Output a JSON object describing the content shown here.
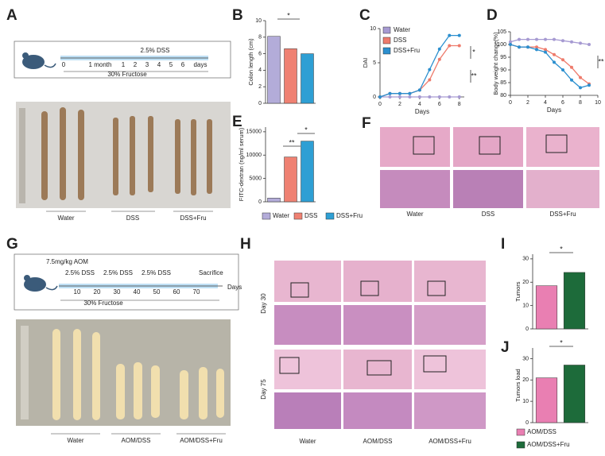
{
  "panels": {
    "A": {
      "label": "A",
      "dss": "2.5% DSS",
      "ticks": [
        "0",
        "1 month",
        "1",
        "2",
        "3",
        "4",
        "5",
        "6"
      ],
      "unit": "days",
      "fructose": "30% Fructose",
      "groups": [
        "Water",
        "DSS",
        "DSS+Fru"
      ]
    },
    "F": {
      "label": "F",
      "groups": [
        "Water",
        "DSS",
        "DSS+Fru"
      ]
    },
    "G": {
      "label": "G",
      "aom": "7.5mg/kg AOM",
      "dss": [
        "2.5% DSS",
        "2.5% DSS",
        "2.5% DSS"
      ],
      "sacrifice": "Sacrifice",
      "ticks": [
        10,
        20,
        30,
        40,
        50,
        60,
        70
      ],
      "unit": "Days",
      "fructose": "30% Fructose",
      "groups": [
        "Water",
        "AOM/DSS",
        "AOM/DSS+Fru"
      ]
    },
    "H": {
      "label": "H",
      "rows": [
        "Day 30",
        "Day 75"
      ],
      "groups": [
        "Water",
        "AOM/DSS",
        "AOM/DSS+Fru"
      ]
    }
  },
  "chart_data": [
    {
      "panel": "B",
      "type": "bar",
      "ylabel": "Colon length (cm)",
      "values": [
        8.1,
        6.6,
        6.0
      ],
      "colors": [
        "#b3acd9",
        "#ef8172",
        "#2e9fd4"
      ],
      "ylim": [
        0,
        10
      ],
      "yticks": [
        0,
        2,
        4,
        6,
        8,
        10
      ],
      "annotations": [
        "*"
      ]
    },
    {
      "panel": "C",
      "type": "line",
      "ylabel": "DAI",
      "xlabel": "Days",
      "x": [
        0,
        1,
        2,
        3,
        4,
        5,
        6,
        7,
        8
      ],
      "xlim": [
        0,
        8.5
      ],
      "xticks": [
        0,
        2,
        4,
        6,
        8
      ],
      "ylim": [
        0,
        10
      ],
      "yticks": [
        0,
        5,
        10
      ],
      "legend": "upper left",
      "series": [
        {
          "name": "Water",
          "color": "#a69ad2",
          "values": [
            0,
            0,
            0,
            0,
            0,
            0,
            0,
            0,
            0
          ]
        },
        {
          "name": "DSS",
          "color": "#ee7b6c",
          "values": [
            0,
            0.5,
            0.5,
            0.5,
            1,
            2.5,
            5.5,
            7.5,
            7.5
          ]
        },
        {
          "name": "DSS+Fru",
          "color": "#2b8fcf",
          "values": [
            0,
            0.5,
            0.5,
            0.5,
            1,
            4,
            7,
            9,
            9
          ]
        }
      ],
      "annotations": [
        "*",
        "**"
      ]
    },
    {
      "panel": "D",
      "type": "line",
      "ylabel": "Body weight change(%)",
      "xlabel": "Days",
      "x": [
        0,
        1,
        2,
        3,
        4,
        5,
        6,
        7,
        8,
        9
      ],
      "xlim": [
        0,
        10
      ],
      "xticks": [
        0,
        2,
        4,
        6,
        8,
        10
      ],
      "ylim": [
        80,
        105
      ],
      "yticks": [
        80,
        85,
        90,
        95,
        100,
        105
      ],
      "series": [
        {
          "color": "#a69ad2",
          "values": [
            101,
            102,
            102,
            102,
            102,
            102,
            101.5,
            101,
            100.5,
            100
          ]
        },
        {
          "color": "#ee7b6c",
          "values": [
            100,
            99,
            99,
            99,
            98,
            96,
            94,
            91,
            87,
            84.5
          ]
        },
        {
          "color": "#2b8fcf",
          "values": [
            100,
            99,
            99,
            98,
            97,
            93,
            90,
            86,
            83,
            84
          ]
        }
      ],
      "annotations": [
        "**"
      ]
    },
    {
      "panel": "E",
      "type": "bar",
      "ylabel": "FITC-dextran (ng/ml serum)",
      "categories": [
        "Water",
        "DSS",
        "DSS+Fru"
      ],
      "values": [
        800,
        9600,
        13000
      ],
      "colors": [
        "#b3acd9",
        "#ef8172",
        "#2e9fd4"
      ],
      "ylim": [
        0,
        16000
      ],
      "yticks": [
        0,
        5000,
        10000,
        15000
      ],
      "legend": "bottom",
      "annotations": [
        "**",
        "*"
      ]
    },
    {
      "panel": "I",
      "type": "bar",
      "ylabel": "Tumors",
      "values": [
        18.5,
        24.2
      ],
      "colors": [
        "#e97fb2",
        "#1d6b3a"
      ],
      "ylim": [
        0,
        32
      ],
      "yticks": [
        0,
        10,
        20,
        30
      ],
      "annotations": [
        "*"
      ]
    },
    {
      "panel": "J",
      "type": "bar",
      "ylabel": "Tumors load",
      "categories": [
        "AOM/DSS",
        "AOM/DSS+Fru"
      ],
      "values": [
        21,
        27
      ],
      "colors": [
        "#e97fb2",
        "#1d6b3a"
      ],
      "ylim": [
        0,
        35
      ],
      "yticks": [
        0,
        10,
        20,
        30
      ],
      "legend": "bottom",
      "annotations": [
        "*"
      ]
    }
  ]
}
